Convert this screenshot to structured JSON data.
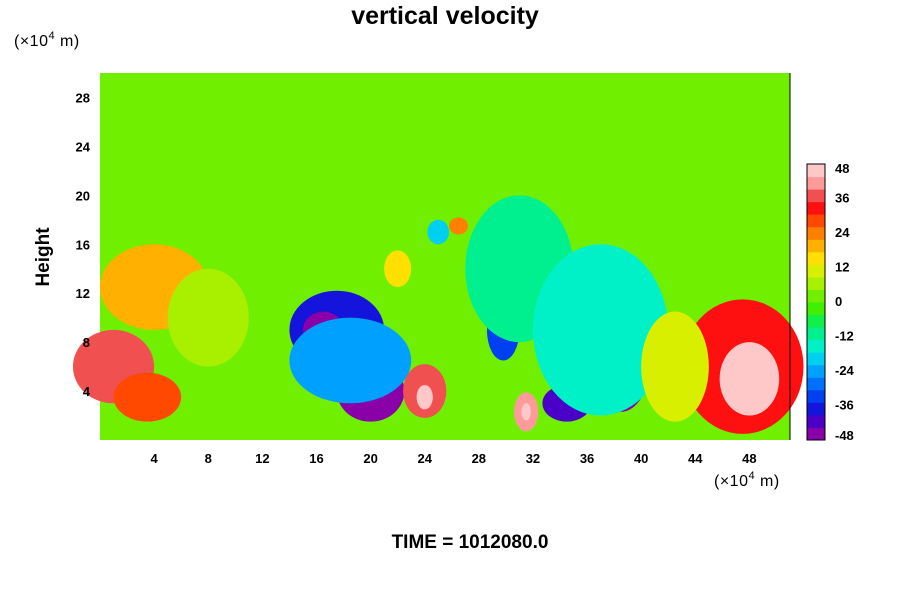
{
  "chart_data": {
    "type": "heatmap",
    "title": "vertical velocity",
    "ylabel": "Height",
    "xunit": {
      "prefix": "(×10",
      "exp": "4",
      "suffix": " m)"
    },
    "yunit": {
      "prefix": "(×10",
      "exp": "4",
      "suffix": " m)"
    },
    "xlim": [
      0,
      51
    ],
    "ylim": [
      0,
      30
    ],
    "xticks": [
      4,
      8,
      12,
      16,
      20,
      24,
      28,
      32,
      36,
      40,
      44,
      48
    ],
    "yticks": [
      4,
      8,
      12,
      16,
      20,
      24,
      28
    ],
    "colorbar": {
      "range": [
        -48,
        48
      ],
      "ticks": [
        48,
        36,
        24,
        12,
        0,
        -12,
        -24,
        -36,
        -48
      ],
      "colors": [
        "#8a00a8",
        "#4a00c8",
        "#1414dc",
        "#0040f0",
        "#0070ff",
        "#00a0ff",
        "#00d0f0",
        "#00f0c8",
        "#00f090",
        "#10f048",
        "#40f000",
        "#70f000",
        "#a8f000",
        "#d8f000",
        "#ffe000",
        "#ffb000",
        "#ff8000",
        "#ff4800",
        "#ff1010",
        "#f05050",
        "#ff9a9a",
        "#ffc8c8"
      ]
    },
    "field": {
      "background": 0,
      "upper_layer": {
        "from": 20,
        "to": 30,
        "value": 2
      },
      "features": [
        {
          "x": 1,
          "y": 6,
          "rx": 3,
          "ry": 3,
          "value": 36
        },
        {
          "x": 4,
          "y": 12.5,
          "rx": 4,
          "ry": 3.5,
          "value": 18
        },
        {
          "x": 3.5,
          "y": 3.5,
          "rx": 2.5,
          "ry": 2,
          "value": 30
        },
        {
          "x": 8,
          "y": 10,
          "rx": 3,
          "ry": 4,
          "value": 6
        },
        {
          "x": 17.5,
          "y": 9,
          "rx": 3.5,
          "ry": 3.2,
          "value": -36
        },
        {
          "x": 16.5,
          "y": 9,
          "rx": 1.5,
          "ry": 1.5,
          "value": -44
        },
        {
          "x": 20,
          "y": 4,
          "rx": 2.5,
          "ry": 2.5,
          "value": -46
        },
        {
          "x": 18.5,
          "y": 6.5,
          "rx": 4.5,
          "ry": 3.5,
          "value": -22
        },
        {
          "x": 24,
          "y": 4,
          "rx": 1.6,
          "ry": 2.2,
          "value": 38
        },
        {
          "x": 24,
          "y": 3.5,
          "rx": 0.6,
          "ry": 1.0,
          "value": 48
        },
        {
          "x": 22,
          "y": 14,
          "rx": 1.0,
          "ry": 1.5,
          "value": 14
        },
        {
          "x": 25,
          "y": 17,
          "rx": 0.8,
          "ry": 1.0,
          "value": -20
        },
        {
          "x": 26.5,
          "y": 17.5,
          "rx": 0.7,
          "ry": 0.7,
          "value": 24
        },
        {
          "x": 30.5,
          "y": 15,
          "rx": 1.0,
          "ry": 2.0,
          "value": -40
        },
        {
          "x": 29.8,
          "y": 9,
          "rx": 1.2,
          "ry": 2.5,
          "value": -32
        },
        {
          "x": 31,
          "y": 14,
          "rx": 4,
          "ry": 6,
          "value": -10
        },
        {
          "x": 31.5,
          "y": 2.3,
          "rx": 0.9,
          "ry": 1.6,
          "value": 40
        },
        {
          "x": 31.5,
          "y": 2.3,
          "rx": 0.35,
          "ry": 0.7,
          "value": 48
        },
        {
          "x": 34.5,
          "y": 3,
          "rx": 1.8,
          "ry": 1.5,
          "value": -40
        },
        {
          "x": 35.5,
          "y": 8,
          "rx": 1.5,
          "ry": 2.5,
          "value": -36
        },
        {
          "x": 38.5,
          "y": 6.5,
          "rx": 2.2,
          "ry": 4.2,
          "value": -44
        },
        {
          "x": 37,
          "y": 9,
          "rx": 5,
          "ry": 7,
          "value": -14
        },
        {
          "x": 47.5,
          "y": 6,
          "rx": 4.5,
          "ry": 5.5,
          "value": 34
        },
        {
          "x": 48,
          "y": 5,
          "rx": 2.2,
          "ry": 3.0,
          "value": 48
        },
        {
          "x": 42.5,
          "y": 6,
          "rx": 2.5,
          "ry": 4.5,
          "value": 12
        }
      ]
    },
    "time_label": "TIME = 1012080.0"
  }
}
